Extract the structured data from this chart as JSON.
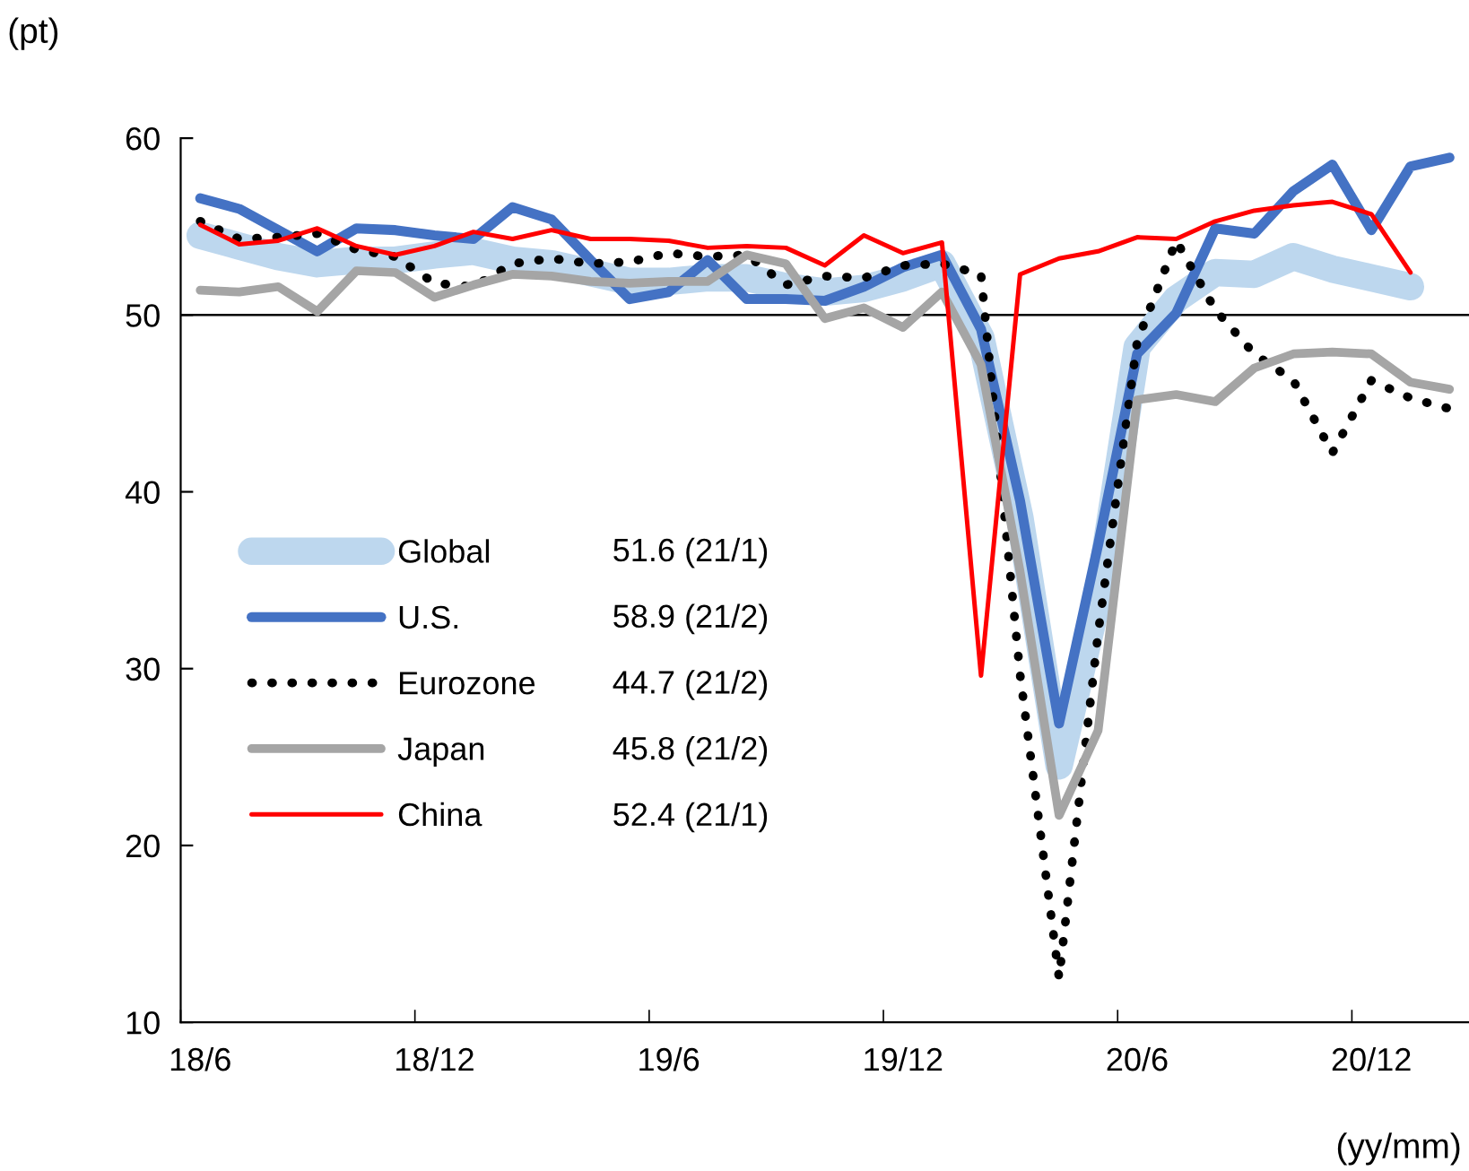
{
  "chart_data": {
    "type": "line",
    "ylabel": "(pt)",
    "xlabel": "(yy/mm)",
    "categories": [
      "18/6",
      null,
      null,
      null,
      null,
      null,
      "18/12",
      null,
      null,
      null,
      null,
      null,
      "19/6",
      null,
      null,
      null,
      null,
      null,
      "19/12",
      null,
      null,
      null,
      null,
      null,
      "20/6",
      null,
      null,
      null,
      null,
      null,
      "20/12",
      null,
      null
    ],
    "ylim": [
      10,
      60
    ],
    "yticks": [
      10,
      20,
      30,
      40,
      50,
      60
    ],
    "ref_lines": [
      {
        "axis": "y",
        "value": 50,
        "color": "#000000",
        "line_style": "solid"
      }
    ],
    "legend": "bottom left",
    "grid": false,
    "series": [
      {
        "name": "Global",
        "color": "#bdd7ee",
        "line_style": "solid",
        "values": [
          54.5,
          53.9,
          53.3,
          52.9,
          53.1,
          53.1,
          53.4,
          53.6,
          53.1,
          52.9,
          52.4,
          51.9,
          51.9,
          52.1,
          52.1,
          51.6,
          51.3,
          51.5,
          52.1,
          52.9,
          48.7,
          38.5,
          24.5,
          34.0,
          48.2,
          50.9,
          52.4,
          52.3,
          53.3,
          52.6,
          52.1,
          51.6,
          null
        ]
      },
      {
        "name": "U.S.",
        "color": "#4472c4",
        "line_style": "solid",
        "values": [
          56.6,
          56.0,
          54.8,
          53.6,
          54.9,
          54.8,
          54.5,
          54.3,
          56.1,
          55.4,
          53.1,
          50.9,
          51.3,
          53.1,
          50.9,
          50.9,
          50.8,
          51.6,
          52.7,
          53.4,
          49.2,
          39.5,
          26.9,
          37.0,
          47.8,
          50.1,
          54.9,
          54.6,
          57.0,
          58.5,
          54.8,
          58.4,
          58.9
        ]
      },
      {
        "name": "Eurozone",
        "color": "#000000",
        "line_style": "dotted",
        "values": [
          55.3,
          54.3,
          54.4,
          54.6,
          53.7,
          53.3,
          51.8,
          51.6,
          52.9,
          53.2,
          52.9,
          53.0,
          53.5,
          53.3,
          53.4,
          51.7,
          52.2,
          52.1,
          52.8,
          52.9,
          52.3,
          29.7,
          12.5,
          32.0,
          48.5,
          54.2,
          50.3,
          47.8,
          46.3,
          42.2,
          46.3,
          45.3,
          44.7
        ]
      },
      {
        "name": "Japan",
        "color": "#a5a5a5",
        "line_style": "solid",
        "values": [
          51.4,
          51.3,
          51.6,
          50.2,
          52.5,
          52.4,
          51.0,
          51.7,
          52.3,
          52.2,
          51.9,
          51.8,
          51.9,
          51.9,
          53.4,
          52.9,
          49.8,
          50.4,
          49.3,
          51.3,
          47.2,
          35.5,
          21.7,
          26.5,
          45.2,
          45.5,
          45.1,
          47.0,
          47.8,
          47.9,
          47.8,
          46.2,
          45.8
        ]
      },
      {
        "name": "China",
        "color": "#ff0000",
        "line_style": "solid",
        "values": [
          55.1,
          54.0,
          54.2,
          54.9,
          53.9,
          53.4,
          53.9,
          54.7,
          54.3,
          54.8,
          54.3,
          54.3,
          54.2,
          53.8,
          53.9,
          53.8,
          52.8,
          54.5,
          53.5,
          54.1,
          29.6,
          52.3,
          53.2,
          53.6,
          54.4,
          54.3,
          55.3,
          55.9,
          56.2,
          56.4,
          55.7,
          52.4,
          null
        ]
      }
    ],
    "annotations": [
      "51.6 (21/1)",
      "58.9 (21/2)",
      "44.7 (21/2)",
      "45.8 (21/2)",
      "52.4 (21/1)"
    ]
  }
}
